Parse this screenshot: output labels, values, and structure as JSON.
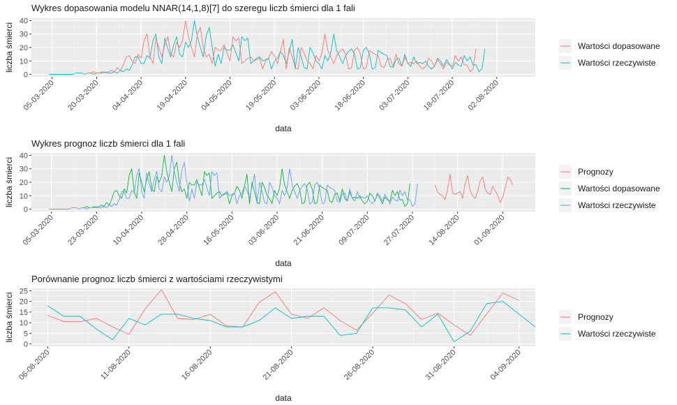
{
  "chart_data": [
    {
      "type": "line",
      "title": "Wykres dopasowania modelu NNAR(14,1,8)[7] do szeregu liczb śmierci dla 1 fali",
      "xlabel": "data",
      "ylabel": "liczba śmierci",
      "ylim": [
        0,
        40
      ],
      "yticks": [
        0,
        10,
        20,
        30,
        40
      ],
      "xlim": [
        "2020-02-27",
        "2020-08-15"
      ],
      "xticks": [
        "05-03-2020",
        "20-03-2020",
        "04-04-2020",
        "19-04-2020",
        "04-05-2020",
        "19-05-2020",
        "03-06-2020",
        "18-06-2020",
        "03-07-2020",
        "18-07-2020",
        "02-08-2020"
      ],
      "grid": true,
      "legend_position": "right",
      "series": [
        {
          "name": "Wartości dopasowane",
          "color": "#F8766D",
          "x_start": "2020-03-17",
          "values": [
            1,
            1,
            2,
            1,
            1,
            2,
            1,
            2,
            3,
            2,
            5,
            3,
            7,
            13,
            14,
            10,
            8,
            15,
            12,
            25,
            30,
            13,
            8,
            27,
            20,
            13,
            22,
            28,
            15,
            13,
            24,
            20,
            25,
            40,
            28,
            20,
            13,
            30,
            35,
            20,
            13,
            15,
            8,
            20,
            18,
            18,
            22,
            16,
            10,
            28,
            25,
            27,
            8,
            10,
            12,
            13,
            10,
            11,
            12,
            4,
            10,
            12,
            17,
            14,
            8,
            17,
            26,
            4,
            20,
            13,
            5,
            4,
            20,
            16,
            10,
            8,
            4,
            14,
            10,
            16,
            30,
            18,
            13,
            8,
            14,
            17,
            19,
            15,
            4,
            5,
            18,
            20,
            15,
            4,
            5,
            18,
            16,
            15,
            14,
            6,
            5,
            11,
            12,
            6,
            15,
            8,
            6,
            13,
            8,
            9,
            8,
            10,
            6,
            4,
            6,
            12,
            10,
            6,
            11,
            8,
            4,
            9,
            7,
            6,
            14,
            10,
            13,
            7,
            7,
            2,
            4,
            19
          ]
        }
      ],
      "series_actual": {
        "name": "Wartości rzeczywiste",
        "color": "#00BFC4",
        "x_start": "2020-03-04",
        "values": [
          0,
          0,
          0,
          0,
          0,
          0,
          0,
          0,
          0,
          1,
          1,
          1,
          0,
          1,
          1,
          0,
          1,
          1,
          1,
          2,
          1,
          1,
          2,
          1,
          3,
          2,
          4,
          3,
          7,
          13,
          13,
          8,
          8,
          14,
          12,
          25,
          30,
          13,
          8,
          27,
          19,
          13,
          22,
          28,
          15,
          13,
          24,
          20,
          25,
          40,
          28,
          20,
          13,
          29,
          35,
          20,
          6,
          15,
          8,
          20,
          18,
          18,
          22,
          16,
          10,
          28,
          25,
          27,
          8,
          10,
          12,
          13,
          10,
          11,
          12,
          4,
          10,
          12,
          17,
          14,
          8,
          17,
          26,
          4,
          20,
          13,
          5,
          4,
          20,
          16,
          10,
          8,
          4,
          14,
          10,
          16,
          30,
          18,
          13,
          8,
          14,
          17,
          19,
          15,
          4,
          5,
          18,
          20,
          15,
          4,
          5,
          18,
          16,
          15,
          14,
          6,
          5,
          11,
          12,
          6,
          15,
          8,
          6,
          13,
          8,
          9,
          8,
          10,
          6,
          4,
          6,
          12,
          10,
          6,
          11,
          8,
          4,
          9,
          7,
          6,
          14,
          10,
          13,
          7,
          7,
          2,
          4,
          19
        ]
      }
    },
    {
      "type": "line",
      "title": "Wykres prognoz liczb śmierci dla 1 fali",
      "xlabel": "data",
      "ylabel": "liczba śmierci",
      "ylim": [
        0,
        40
      ],
      "yticks": [
        0,
        10,
        20,
        30,
        40
      ],
      "xlim": [
        "2020-02-26",
        "2020-09-14"
      ],
      "xticks": [
        "05-03-2020",
        "23-03-2020",
        "10-04-2020",
        "28-04-2020",
        "16-05-2020",
        "03-06-2020",
        "21-06-2020",
        "09-07-2020",
        "27-07-2020",
        "14-08-2020",
        "01-09-2020"
      ],
      "grid": true,
      "legend_position": "right",
      "series": [
        {
          "name": "Prognozy",
          "color": "#F8766D",
          "x_start": "2020-08-05",
          "values": [
            18,
            13,
            11,
            10,
            7,
            15,
            26,
            12,
            11,
            12,
            13,
            8,
            19,
            25,
            14,
            10,
            8,
            13,
            21,
            24,
            15,
            12,
            11,
            17,
            14,
            10,
            5,
            9,
            16,
            24,
            22,
            18
          ]
        },
        {
          "name": "Wartości dopasowane",
          "color": "#00BA38",
          "x_start": "2020-03-17",
          "values": [
            1,
            1,
            2,
            1,
            1,
            2,
            1,
            2,
            3,
            2,
            5,
            3,
            7,
            13,
            14,
            10,
            8,
            15,
            12,
            25,
            30,
            13,
            8,
            27,
            20,
            13,
            22,
            28,
            15,
            13,
            24,
            20,
            25,
            40,
            28,
            20,
            13,
            30,
            35,
            20,
            13,
            15,
            8,
            20,
            18,
            18,
            22,
            16,
            10,
            28,
            25,
            27,
            8,
            10,
            12,
            13,
            10,
            11,
            12,
            4,
            10,
            12,
            17,
            14,
            8,
            17,
            26,
            4,
            20,
            13,
            5,
            4,
            20,
            16,
            10,
            8,
            4,
            14,
            10,
            16,
            30,
            18,
            13,
            8,
            14,
            17,
            19,
            15,
            4,
            5,
            18,
            20,
            15,
            4,
            5,
            18,
            16,
            15,
            14,
            6,
            5,
            11,
            12,
            6,
            15,
            8,
            6,
            13,
            8,
            9,
            8,
            10,
            6,
            4,
            6,
            12,
            10,
            6,
            11,
            8,
            4,
            9,
            7,
            6,
            14,
            10,
            13,
            7,
            7,
            2,
            4,
            19
          ]
        },
        {
          "name": "Wartości rzeczywiste",
          "color": "#619CFF",
          "x_start": "2020-03-04",
          "values": [
            0,
            0,
            0,
            0,
            0,
            0,
            0,
            0,
            0,
            1,
            1,
            1,
            0,
            1,
            1,
            0,
            1,
            1,
            1,
            2,
            1,
            1,
            2,
            1,
            3,
            2,
            4,
            3,
            7,
            13,
            13,
            8,
            8,
            14,
            12,
            25,
            30,
            13,
            8,
            27,
            19,
            13,
            22,
            28,
            15,
            13,
            24,
            20,
            25,
            40,
            28,
            20,
            13,
            29,
            35,
            20,
            6,
            15,
            8,
            20,
            18,
            18,
            22,
            16,
            10,
            28,
            25,
            27,
            8,
            10,
            12,
            13,
            10,
            11,
            12,
            4,
            10,
            12,
            17,
            14,
            8,
            17,
            26,
            4,
            20,
            13,
            5,
            4,
            20,
            16,
            10,
            8,
            4,
            14,
            10,
            16,
            30,
            18,
            13,
            8,
            14,
            17,
            19,
            15,
            4,
            5,
            18,
            20,
            15,
            4,
            5,
            18,
            16,
            15,
            14,
            6,
            5,
            11,
            12,
            6,
            15,
            8,
            6,
            13,
            8,
            9,
            8,
            10,
            6,
            4,
            6,
            12,
            10,
            6,
            11,
            8,
            4,
            9,
            7,
            6,
            14,
            10,
            13,
            7,
            7,
            2,
            4,
            19
          ]
        }
      ]
    },
    {
      "type": "line",
      "title": "Porównanie prognoz liczb śmierci z wartościami rzeczywistymi",
      "xlabel": "data",
      "ylabel": "liczba śmierci",
      "ylim": [
        0,
        25
      ],
      "yticks": [
        0,
        5,
        10,
        15,
        20,
        25
      ],
      "xlim": [
        "2020-08-05",
        "2020-09-05"
      ],
      "xticks": [
        "06-08-2020",
        "11-08-2020",
        "16-08-2020",
        "21-08-2020",
        "26-08-2020",
        "31-08-2020",
        "04-09-2020"
      ],
      "grid": true,
      "legend_position": "right",
      "series": [
        {
          "name": "Prognozy",
          "color": "#F8766D",
          "x_start": "2020-08-06",
          "values": [
            13.5,
            10.5,
            10.5,
            12,
            8,
            4.5,
            16.5,
            25.5,
            12,
            11.5,
            14,
            8.5,
            8,
            19.5,
            24.5,
            14,
            12,
            17,
            11,
            6.5,
            14.5,
            23,
            19,
            11.5,
            14.5,
            9,
            4,
            14,
            24,
            20.5
          ]
        },
        {
          "name": "Wartości rzeczywiste",
          "color": "#00BFC4",
          "x_start": "2020-08-06",
          "values": [
            18,
            13,
            13,
            7,
            2,
            12,
            9,
            14,
            14,
            12,
            11,
            8,
            8,
            11,
            17,
            12,
            13,
            13,
            4,
            5,
            17,
            17,
            16,
            8,
            14,
            1,
            6,
            19,
            20,
            14,
            8
          ]
        }
      ]
    }
  ]
}
